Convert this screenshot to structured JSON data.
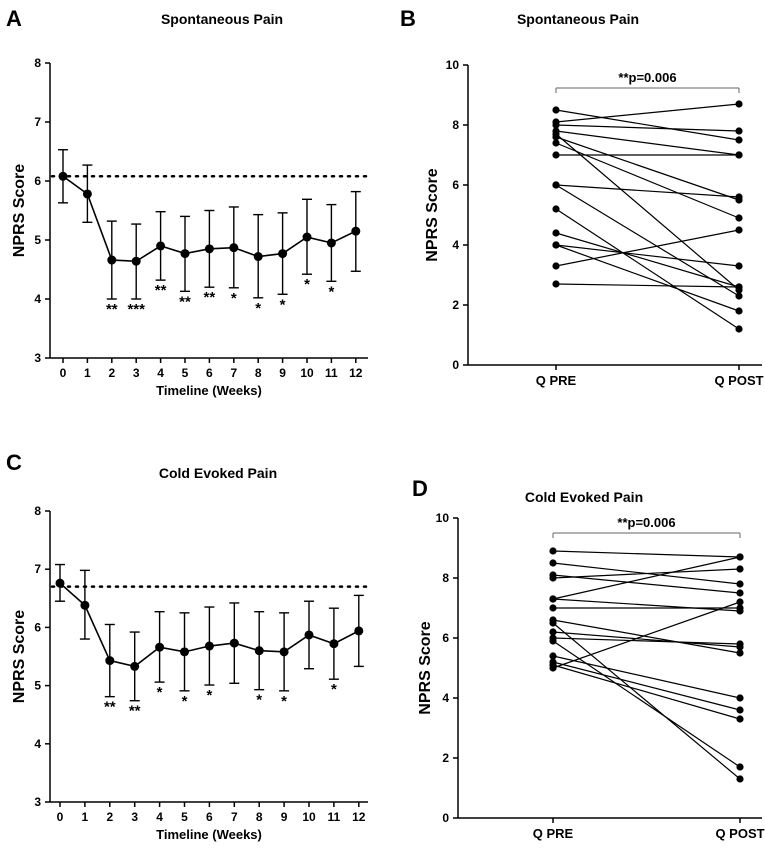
{
  "chart_data": [
    {
      "panel": "A",
      "type": "line",
      "title": "Spontaneous Pain",
      "xlabel": "Timeline (Weeks)",
      "ylabel": "NPRS Score",
      "x": [
        0,
        1,
        2,
        3,
        4,
        5,
        6,
        7,
        8,
        9,
        10,
        11,
        12
      ],
      "values": [
        6.08,
        5.78,
        4.66,
        4.64,
        4.9,
        4.77,
        4.85,
        4.87,
        4.72,
        4.77,
        5.05,
        4.95,
        5.15
      ],
      "err_upper": [
        6.53,
        6.27,
        5.32,
        5.27,
        5.48,
        5.4,
        5.5,
        5.56,
        5.43,
        5.46,
        5.69,
        5.6,
        5.82
      ],
      "err_lower": [
        5.63,
        5.3,
        4.0,
        4.0,
        4.32,
        4.13,
        4.2,
        4.19,
        4.02,
        4.08,
        4.42,
        4.3,
        4.47
      ],
      "baseline": 6.08,
      "significance": [
        "",
        "",
        "**",
        "***",
        "**",
        "**",
        "**",
        "*",
        "*",
        "*",
        "*",
        "*",
        ""
      ],
      "ylim": [
        3,
        8
      ],
      "yticks": [
        "3",
        "4",
        "5",
        "6",
        "7",
        "8"
      ],
      "xticks": [
        "0",
        "1",
        "2",
        "3",
        "4",
        "5",
        "6",
        "7",
        "8",
        "9",
        "10",
        "11",
        "12"
      ]
    },
    {
      "panel": "B",
      "type": "line",
      "title": "Spontaneous Pain",
      "ylabel": "NPRS Score",
      "categories": [
        "Q PRE",
        "Q POST"
      ],
      "pairs": [
        [
          8.5,
          7.5
        ],
        [
          8.1,
          8.7
        ],
        [
          8.0,
          7.8
        ],
        [
          7.8,
          7.0
        ],
        [
          7.6,
          5.5
        ],
        [
          7.4,
          4.9
        ],
        [
          7.0,
          7.0
        ],
        [
          7.7,
          2.5
        ],
        [
          6.0,
          5.6
        ],
        [
          6.0,
          2.3
        ],
        [
          5.2,
          1.2
        ],
        [
          4.4,
          2.6
        ],
        [
          4.0,
          1.8
        ],
        [
          4.0,
          3.3
        ],
        [
          3.3,
          4.5
        ],
        [
          2.7,
          2.6
        ]
      ],
      "annotation": "**p=0.006",
      "ylim": [
        0,
        10
      ],
      "yticks": [
        "0",
        "2",
        "4",
        "6",
        "8",
        "10"
      ]
    },
    {
      "panel": "C",
      "type": "line",
      "title": "Cold Evoked Pain",
      "xlabel": "Timeline (Weeks)",
      "ylabel": "NPRS Score",
      "x": [
        0,
        1,
        2,
        3,
        4,
        5,
        6,
        7,
        8,
        9,
        10,
        11,
        12
      ],
      "values": [
        6.76,
        6.38,
        5.43,
        5.33,
        5.66,
        5.58,
        5.68,
        5.73,
        5.6,
        5.58,
        5.87,
        5.72,
        5.94
      ],
      "err_upper": [
        7.08,
        6.98,
        6.05,
        5.92,
        6.27,
        6.25,
        6.35,
        6.42,
        6.27,
        6.25,
        6.45,
        6.33,
        6.55
      ],
      "err_lower": [
        6.45,
        5.8,
        4.81,
        4.74,
        5.06,
        4.91,
        5.01,
        5.04,
        4.93,
        4.91,
        5.29,
        5.11,
        5.33
      ],
      "baseline": 6.7,
      "significance": [
        "",
        "",
        "**",
        "**",
        "*",
        "*",
        "*",
        "",
        "*",
        "*",
        "",
        "*",
        ""
      ],
      "ylim": [
        3,
        8
      ],
      "yticks": [
        "3",
        "4",
        "5",
        "6",
        "7",
        "8"
      ],
      "xticks": [
        "0",
        "1",
        "2",
        "3",
        "4",
        "5",
        "6",
        "7",
        "8",
        "9",
        "10",
        "11",
        "12"
      ]
    },
    {
      "panel": "D",
      "type": "line",
      "title": "Cold Evoked Pain",
      "ylabel": "NPRS Score",
      "categories": [
        "Q PRE",
        "Q POST"
      ],
      "pairs": [
        [
          8.9,
          8.7
        ],
        [
          8.5,
          7.8
        ],
        [
          8.1,
          7.5
        ],
        [
          8.0,
          8.3
        ],
        [
          7.3,
          8.7
        ],
        [
          7.0,
          7.0
        ],
        [
          7.3,
          6.9
        ],
        [
          6.6,
          5.5
        ],
        [
          6.5,
          1.3
        ],
        [
          6.0,
          5.8
        ],
        [
          6.2,
          5.7
        ],
        [
          5.9,
          1.7
        ],
        [
          5.4,
          4.0
        ],
        [
          5.2,
          3.6
        ],
        [
          5.1,
          3.3
        ],
        [
          5.0,
          7.2
        ]
      ],
      "annotation": "**p=0.006",
      "ylim": [
        0,
        10
      ],
      "yticks": [
        "0",
        "2",
        "4",
        "6",
        "8",
        "10"
      ]
    }
  ]
}
